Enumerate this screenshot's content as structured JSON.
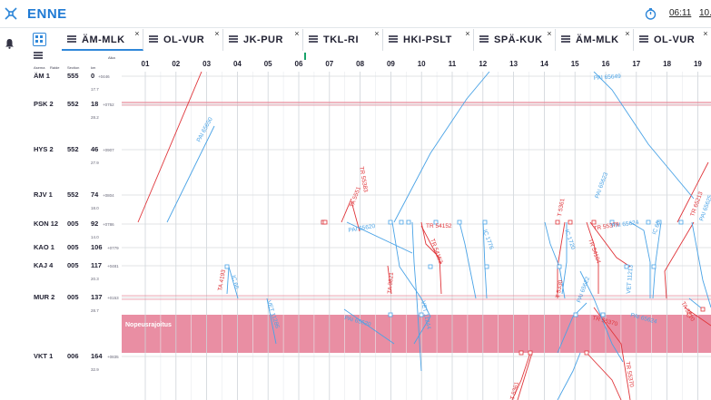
{
  "app": {
    "title": "ENNE",
    "clock": "06:11",
    "clock2": "10."
  },
  "tabs": [
    {
      "label": "ÄM-MLK",
      "active": true
    },
    {
      "label": "OL-VUR",
      "active": false
    },
    {
      "label": "JK-PUR",
      "active": false
    },
    {
      "label": "TKL-RI",
      "active": false
    },
    {
      "label": "HKI-PSLT",
      "active": false
    },
    {
      "label": "SPÄ-KUK",
      "active": false
    },
    {
      "label": "ÄM-MLK",
      "active": false
    },
    {
      "label": "OL-VUR",
      "active": false
    }
  ],
  "columns": {
    "asema": "Asema",
    "raide": "Raide",
    "section": "Section",
    "km": "km",
    "aika": "Aika"
  },
  "hours": [
    "01",
    "02",
    "03",
    "04",
    "05",
    "06",
    "07",
    "08",
    "09",
    "10",
    "11",
    "12",
    "13",
    "14",
    "15",
    "16",
    "17",
    "18",
    "19"
  ],
  "stations": [
    {
      "name": "ÄM",
      "track": "1",
      "section": "555",
      "km": "0",
      "km_dec": "+0446",
      "sub": "17.7"
    },
    {
      "name": "PSK",
      "track": "2",
      "section": "552",
      "km": "18",
      "km_dec": "+0752",
      "sub": "28.2"
    },
    {
      "name": "HYS",
      "track": "2",
      "section": "552",
      "km": "46",
      "km_dec": "+0907",
      "sub": "27.9"
    },
    {
      "name": "RJV",
      "track": "1",
      "section": "552",
      "km": "74",
      "km_dec": "+0804",
      "sub": "18.0"
    },
    {
      "name": "KON",
      "track": "12",
      "section": "005",
      "km": "92",
      "km_dec": "+0786",
      "sub": "14.0"
    },
    {
      "name": "KAO",
      "track": "1",
      "section": "005",
      "km": "106",
      "km_dec": "+0779",
      "sub": ""
    },
    {
      "name": "KAJ",
      "track": "4",
      "section": "005",
      "km": "117",
      "km_dec": "+0481",
      "sub": "20.3"
    },
    {
      "name": "MUR",
      "track": "2",
      "section": "005",
      "km": "137",
      "km_dec": "+0153",
      "sub": "28.7"
    },
    {
      "name": "VKT",
      "track": "1",
      "section": "006",
      "km": "164",
      "km_dec": "+0835",
      "sub": "32.9"
    }
  ],
  "restriction": {
    "label": "Nopeusrajoitus",
    "color": "#e98ea3"
  },
  "colors": {
    "blue": "#4aa3e6",
    "red": "#e0353a",
    "pink_line": "#e88a9a",
    "accent": "#2f87d9"
  },
  "train_labels": {
    "blue": [
      "PAI 65649",
      "PAI 65650",
      "PAI 65620",
      "IC 66",
      "TA 4193",
      "VET 11286",
      "PAI 65620",
      "VET 11244",
      "IC 1776",
      "IC 1720",
      "PAI 65623",
      "PAI 65624",
      "IC 65",
      "VET 11213",
      "PAI 65625",
      "PAI 65622",
      "PAI 65624"
    ],
    "red": [
      "TA 5551",
      "TR 55383",
      "TR 54152",
      "TR 54152",
      "TA 3821",
      "T 5361",
      "TR 54104",
      "TR 55379",
      "TR 65213",
      "T 5330",
      "TR 55370",
      "TA 3820",
      "TR 55370",
      "T 5361"
    ]
  }
}
